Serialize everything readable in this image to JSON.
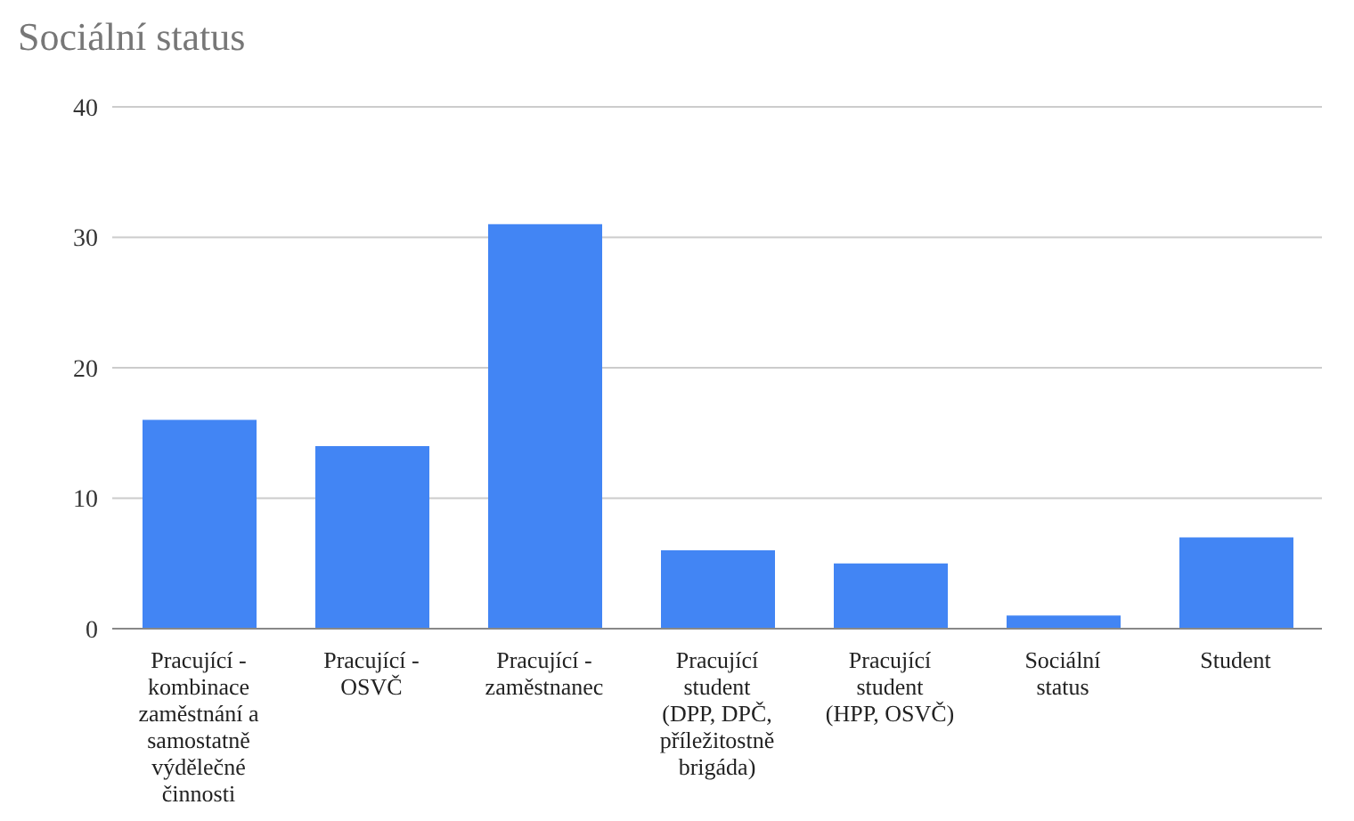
{
  "chart_data": {
    "type": "bar",
    "title": "Sociální status",
    "categories": [
      "Pracující - kombinace zaměstnání a samostatně výdělečné činnosti",
      "Pracující - OSVČ",
      "Pracující - zaměstnanec",
      "Pracující student (DPP, DPČ, příležitostně brigáda)",
      "Pracující student (HPP, OSVČ)",
      "Sociální status",
      "Student"
    ],
    "values": [
      16,
      14,
      31,
      6,
      5,
      1,
      7
    ],
    "color": "#4285f4",
    "ylim": [
      0,
      40
    ],
    "yticks": [
      0,
      10,
      20,
      30,
      40
    ],
    "grid": "y"
  }
}
